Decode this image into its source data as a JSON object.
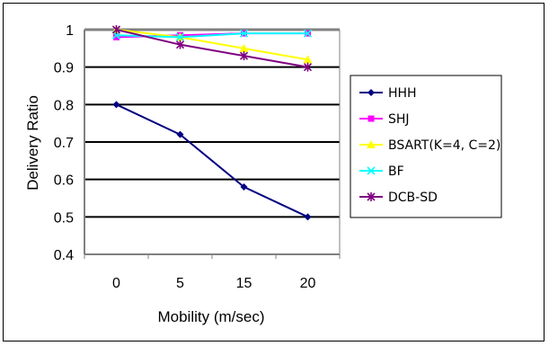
{
  "chart_data": {
    "type": "line",
    "xlabel": "Mobility (m/sec)",
    "ylabel": "Delivery Ratio",
    "categories": [
      "0",
      "5",
      "15",
      "20"
    ],
    "ylim": [
      0.4,
      1.0
    ],
    "yticks": [
      "0.4",
      "0.5",
      "0.6",
      "0.7",
      "0.8",
      "0.9",
      "1"
    ],
    "grid": "horizontal",
    "legend_position": "right",
    "series": [
      {
        "name": "HHH",
        "values": [
          0.8,
          0.72,
          0.58,
          0.5
        ],
        "color": "#000080",
        "marker": "diamond"
      },
      {
        "name": "SHJ",
        "values": [
          0.98,
          0.985,
          0.99,
          0.99
        ],
        "color": "#ff00ff",
        "marker": "square"
      },
      {
        "name": "BSART(K=4, C=2)",
        "values": [
          1.0,
          0.98,
          0.95,
          0.92
        ],
        "color": "#ffff00",
        "marker": "triangle"
      },
      {
        "name": "BF",
        "values": [
          0.985,
          0.98,
          0.99,
          0.99
        ],
        "color": "#00ffff",
        "marker": "x"
      },
      {
        "name": "DCB-SD",
        "values": [
          1.0,
          0.96,
          0.93,
          0.9
        ],
        "color": "#800080",
        "marker": "asterisk"
      }
    ]
  }
}
